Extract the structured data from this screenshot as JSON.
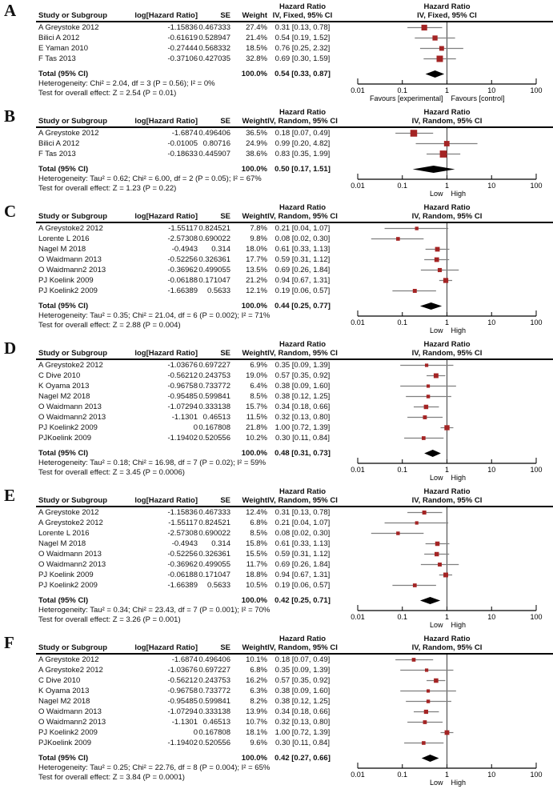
{
  "colors": {
    "marker": "#a42424",
    "ci_line": "#7f7f7f",
    "diamond": "#000000",
    "null_line": "#3f3f3f",
    "axis": "#000000"
  },
  "chart_data": [
    {
      "type": "forest",
      "label": "A",
      "effect_header": "Hazard Ratio",
      "columns": {
        "study": "Study or Subgroup",
        "loghr": "log[Hazard Ratio]",
        "se": "SE",
        "weight": "Weight",
        "ci": "IV, Fixed, 95% CI"
      },
      "x_scale": "log10",
      "x_range": [
        0.01,
        100
      ],
      "axis_values": [
        0.01,
        0.1,
        1,
        10,
        100
      ],
      "axis_ticks": [
        "0.01",
        "0.1",
        "1",
        "10",
        "100"
      ],
      "left_label": "Favours [experimental]",
      "right_label": "Favours [control]",
      "rows": [
        {
          "study": "A Greystoke 2012",
          "loghr": "-1.15836",
          "se": "0.467333",
          "weight": "27.4%",
          "ci": "0.31 [0.13, 0.78]",
          "est": 0.31,
          "lo": 0.13,
          "hi": 0.78,
          "w": 27.4
        },
        {
          "study": "Bilici A 2012",
          "loghr": "-0.61619",
          "se": "0.528947",
          "weight": "21.4%",
          "ci": "0.54 [0.19, 1.52]",
          "est": 0.54,
          "lo": 0.19,
          "hi": 1.52,
          "w": 21.4
        },
        {
          "study": "E Yaman 2010",
          "loghr": "-0.27444",
          "se": "0.568332",
          "weight": "18.5%",
          "ci": "0.76 [0.25, 2.32]",
          "est": 0.76,
          "lo": 0.25,
          "hi": 2.32,
          "w": 18.5
        },
        {
          "study": "F Tas 2013",
          "loghr": "-0.37106",
          "se": "0.427035",
          "weight": "32.8%",
          "ci": "0.69 [0.30, 1.59]",
          "est": 0.69,
          "lo": 0.3,
          "hi": 1.59,
          "w": 32.8
        }
      ],
      "total": {
        "label": "Total (95% CI)",
        "weight": "100.0%",
        "ci": "0.54 [0.33, 0.87]",
        "est": 0.54,
        "lo": 0.33,
        "hi": 0.87
      },
      "heterogeneity": "Heterogeneity: Chi² = 2.04, df = 3 (P = 0.56); I² = 0%",
      "overall_effect": "Test for overall effect: Z = 2.54 (P = 0.01)"
    },
    {
      "type": "forest",
      "label": "B",
      "effect_header": "Hazard Ratio",
      "columns": {
        "study": "Study or Subgroup",
        "loghr": "log[Hazard Ratio]",
        "se": "SE",
        "weight": "Weight",
        "ci": "IV, Random, 95% CI"
      },
      "x_scale": "log10",
      "x_range": [
        0.01,
        100
      ],
      "axis_values": [
        0.01,
        0.1,
        1,
        10,
        100
      ],
      "axis_ticks": [
        "0.01",
        "0.1",
        "1",
        "10",
        "100"
      ],
      "left_label": "Low",
      "right_label": "High",
      "rows": [
        {
          "study": "A Greystoke 2012",
          "loghr": "-1.6874",
          "se": "0.496406",
          "weight": "36.5%",
          "ci": "0.18 [0.07, 0.49]",
          "est": 0.18,
          "lo": 0.07,
          "hi": 0.49,
          "w": 36.5
        },
        {
          "study": "Bilici A 2012",
          "loghr": "-0.01005",
          "se": "0.80716",
          "weight": "24.9%",
          "ci": "0.99 [0.20, 4.82]",
          "est": 0.99,
          "lo": 0.2,
          "hi": 4.82,
          "w": 24.9
        },
        {
          "study": "F Tas 2013",
          "loghr": "-0.18633",
          "se": "0.445907",
          "weight": "38.6%",
          "ci": "0.83 [0.35, 1.99]",
          "est": 0.83,
          "lo": 0.35,
          "hi": 1.99,
          "w": 38.6
        }
      ],
      "total": {
        "label": "Total (95% CI)",
        "weight": "100.0%",
        "ci": "0.50 [0.17, 1.51]",
        "est": 0.5,
        "lo": 0.17,
        "hi": 1.51
      },
      "heterogeneity": "Heterogeneity: Tau² = 0.62; Chi² = 6.00, df = 2 (P = 0.05); I² = 67%",
      "overall_effect": "Test for overall effect: Z = 1.23 (P = 0.22)"
    },
    {
      "type": "forest",
      "label": "C",
      "effect_header": "Hazard Ratio",
      "columns": {
        "study": "Study or Subgroup",
        "loghr": "log[Hazard Ratio]",
        "se": "SE",
        "weight": "Weight",
        "ci": "IV, Random, 95% CI"
      },
      "x_scale": "log10",
      "x_range": [
        0.01,
        100
      ],
      "axis_values": [
        0.01,
        0.1,
        1,
        10,
        100
      ],
      "axis_ticks": [
        "0.01",
        "0.1",
        "1",
        "10",
        "100"
      ],
      "left_label": "Low",
      "right_label": "High",
      "rows": [
        {
          "study": "A Greystoke2 2012",
          "loghr": "-1.55117",
          "se": "0.824521",
          "weight": "7.8%",
          "ci": "0.21 [0.04, 1.07]",
          "est": 0.21,
          "lo": 0.04,
          "hi": 1.07,
          "w": 7.8
        },
        {
          "study": "Lorente L 2016",
          "loghr": "-2.57308",
          "se": "0.690022",
          "weight": "9.8%",
          "ci": "0.08 [0.02, 0.30]",
          "est": 0.08,
          "lo": 0.02,
          "hi": 0.3,
          "w": 9.8
        },
        {
          "study": "Nagel M 2018",
          "loghr": "-0.4943",
          "se": "0.314",
          "weight": "18.0%",
          "ci": "0.61 [0.33, 1.13]",
          "est": 0.61,
          "lo": 0.33,
          "hi": 1.13,
          "w": 18.0
        },
        {
          "study": "O Waidmann 2013",
          "loghr": "-0.52256",
          "se": "0.326361",
          "weight": "17.7%",
          "ci": "0.59 [0.31, 1.12]",
          "est": 0.59,
          "lo": 0.31,
          "hi": 1.12,
          "w": 17.7
        },
        {
          "study": "O Waidmann2 2013",
          "loghr": "-0.36962",
          "se": "0.499055",
          "weight": "13.5%",
          "ci": "0.69 [0.26, 1.84]",
          "est": 0.69,
          "lo": 0.26,
          "hi": 1.84,
          "w": 13.5
        },
        {
          "study": "PJ Koelink 2009",
          "loghr": "-0.06188",
          "se": "0.171047",
          "weight": "21.2%",
          "ci": "0.94 [0.67, 1.31]",
          "est": 0.94,
          "lo": 0.67,
          "hi": 1.31,
          "w": 21.2
        },
        {
          "study": "PJ Koelink2 2009",
          "loghr": "-1.66389",
          "se": "0.5633",
          "weight": "12.1%",
          "ci": "0.19 [0.06, 0.57]",
          "est": 0.19,
          "lo": 0.06,
          "hi": 0.57,
          "w": 12.1
        }
      ],
      "total": {
        "label": "Total (95% CI)",
        "weight": "100.0%",
        "ci": "0.44 [0.25, 0.77]",
        "est": 0.44,
        "lo": 0.25,
        "hi": 0.77
      },
      "heterogeneity": "Heterogeneity: Tau² = 0.35; Chi² = 21.04, df = 6 (P = 0.002); I² = 71%",
      "overall_effect": "Test for overall effect: Z = 2.88 (P = 0.004)"
    },
    {
      "type": "forest",
      "label": "D",
      "effect_header": "Hazard Ratio",
      "columns": {
        "study": "Study or Subgroup",
        "loghr": "log[Hazard Ratio]",
        "se": "SE",
        "weight": "Weight",
        "ci": "IV, Random, 95% CI"
      },
      "x_scale": "log10",
      "x_range": [
        0.01,
        100
      ],
      "axis_values": [
        0.01,
        0.1,
        1,
        10,
        100
      ],
      "axis_ticks": [
        "0.01",
        "0.1",
        "1",
        "10",
        "100"
      ],
      "left_label": "Low",
      "right_label": "High",
      "rows": [
        {
          "study": "A Greystoke2 2012",
          "loghr": "-1.03676",
          "se": "0.697227",
          "weight": "6.9%",
          "ci": "0.35 [0.09, 1.39]",
          "est": 0.35,
          "lo": 0.09,
          "hi": 1.39,
          "w": 6.9
        },
        {
          "study": "C Dive 2010",
          "loghr": "-0.56212",
          "se": "0.243753",
          "weight": "19.0%",
          "ci": "0.57 [0.35, 0.92]",
          "est": 0.57,
          "lo": 0.35,
          "hi": 0.92,
          "w": 19.0
        },
        {
          "study": "K Oyama 2013",
          "loghr": "-0.96758",
          "se": "0.733772",
          "weight": "6.4%",
          "ci": "0.38 [0.09, 1.60]",
          "est": 0.38,
          "lo": 0.09,
          "hi": 1.6,
          "w": 6.4
        },
        {
          "study": "Nagel M2 2018",
          "loghr": "-0.95485",
          "se": "0.599841",
          "weight": "8.5%",
          "ci": "0.38 [0.12, 1.25]",
          "est": 0.38,
          "lo": 0.12,
          "hi": 1.25,
          "w": 8.5
        },
        {
          "study": "O Waidmann 2013",
          "loghr": "-1.07294",
          "se": "0.333138",
          "weight": "15.7%",
          "ci": "0.34 [0.18, 0.66]",
          "est": 0.34,
          "lo": 0.18,
          "hi": 0.66,
          "w": 15.7
        },
        {
          "study": "O Waidmann2 2013",
          "loghr": "-1.1301",
          "se": "0.46513",
          "weight": "11.5%",
          "ci": "0.32 [0.13, 0.80]",
          "est": 0.32,
          "lo": 0.13,
          "hi": 0.8,
          "w": 11.5
        },
        {
          "study": "PJ Koelink2 2009",
          "loghr": "0",
          "se": "0.167808",
          "weight": "21.8%",
          "ci": "1.00 [0.72, 1.39]",
          "est": 1.0,
          "lo": 0.72,
          "hi": 1.39,
          "w": 21.8
        },
        {
          "study": "PJKoelink 2009",
          "loghr": "-1.19402",
          "se": "0.520556",
          "weight": "10.2%",
          "ci": "0.30 [0.11, 0.84]",
          "est": 0.3,
          "lo": 0.11,
          "hi": 0.84,
          "w": 10.2
        }
      ],
      "total": {
        "label": "Total (95% CI)",
        "weight": "100.0%",
        "ci": "0.48 [0.31, 0.73]",
        "est": 0.48,
        "lo": 0.31,
        "hi": 0.73
      },
      "heterogeneity": "Heterogeneity: Tau² = 0.18; Chi² = 16.98, df = 7 (P = 0.02); I² = 59%",
      "overall_effect": "Test for overall effect: Z = 3.45 (P = 0.0006)"
    },
    {
      "type": "forest",
      "label": "E",
      "effect_header": "Hazard Ratio",
      "columns": {
        "study": "Study or Subgroup",
        "loghr": "log[Hazard Ratio]",
        "se": "SE",
        "weight": "Weight",
        "ci": "IV, Random, 95% CI"
      },
      "x_scale": "log10",
      "x_range": [
        0.01,
        100
      ],
      "axis_values": [
        0.01,
        0.1,
        1,
        10,
        100
      ],
      "axis_ticks": [
        "0.01",
        "0.1",
        "1",
        "10",
        "100"
      ],
      "left_label": "Low",
      "right_label": "High",
      "rows": [
        {
          "study": "A Greystoke 2012",
          "loghr": "-1.15836",
          "se": "0.467333",
          "weight": "12.4%",
          "ci": "0.31 [0.13, 0.78]",
          "est": 0.31,
          "lo": 0.13,
          "hi": 0.78,
          "w": 12.4
        },
        {
          "study": "A Greystoke2 2012",
          "loghr": "-1.55117",
          "se": "0.824521",
          "weight": "6.8%",
          "ci": "0.21 [0.04, 1.07]",
          "est": 0.21,
          "lo": 0.04,
          "hi": 1.07,
          "w": 6.8
        },
        {
          "study": "Lorente L 2016",
          "loghr": "-2.57308",
          "se": "0.690022",
          "weight": "8.5%",
          "ci": "0.08 [0.02, 0.30]",
          "est": 0.08,
          "lo": 0.02,
          "hi": 0.3,
          "w": 8.5
        },
        {
          "study": "Nagel M 2018",
          "loghr": "-0.4943",
          "se": "0.314",
          "weight": "15.8%",
          "ci": "0.61 [0.33, 1.13]",
          "est": 0.61,
          "lo": 0.33,
          "hi": 1.13,
          "w": 15.8
        },
        {
          "study": "O Waidmann 2013",
          "loghr": "-0.52256",
          "se": "0.326361",
          "weight": "15.5%",
          "ci": "0.59 [0.31, 1.12]",
          "est": 0.59,
          "lo": 0.31,
          "hi": 1.12,
          "w": 15.5
        },
        {
          "study": "O Waidmann2 2013",
          "loghr": "-0.36962",
          "se": "0.499055",
          "weight": "11.7%",
          "ci": "0.69 [0.26, 1.84]",
          "est": 0.69,
          "lo": 0.26,
          "hi": 1.84,
          "w": 11.7
        },
        {
          "study": "PJ Koelink 2009",
          "loghr": "-0.06188",
          "se": "0.171047",
          "weight": "18.8%",
          "ci": "0.94 [0.67, 1.31]",
          "est": 0.94,
          "lo": 0.67,
          "hi": 1.31,
          "w": 18.8
        },
        {
          "study": "PJ Koelink2 2009",
          "loghr": "-1.66389",
          "se": "0.5633",
          "weight": "10.5%",
          "ci": "0.19 [0.06, 0.57]",
          "est": 0.19,
          "lo": 0.06,
          "hi": 0.57,
          "w": 10.5
        }
      ],
      "total": {
        "label": "Total (95% CI)",
        "weight": "100.0%",
        "ci": "0.42 [0.25, 0.71]",
        "est": 0.42,
        "lo": 0.25,
        "hi": 0.71
      },
      "heterogeneity": "Heterogeneity: Tau² = 0.34; Chi² = 23.43, df = 7 (P = 0.001); I² = 70%",
      "overall_effect": "Test for overall effect: Z = 3.26 (P = 0.001)"
    },
    {
      "type": "forest",
      "label": "F",
      "effect_header": "Hazard Ratio",
      "columns": {
        "study": "Study or Subgroup",
        "loghr": "log[Hazard Ratio]",
        "se": "SE",
        "weight": "Weight",
        "ci": "IV, Random, 95% CI"
      },
      "x_scale": "log10",
      "x_range": [
        0.01,
        100
      ],
      "axis_values": [
        0.01,
        0.1,
        1,
        10,
        100
      ],
      "axis_ticks": [
        "0.01",
        "0.1",
        "1",
        "10",
        "100"
      ],
      "left_label": "Low",
      "right_label": "High",
      "rows": [
        {
          "study": "A Greystoke 2012",
          "loghr": "-1.6874",
          "se": "0.496406",
          "weight": "10.1%",
          "ci": "0.18 [0.07, 0.49]",
          "est": 0.18,
          "lo": 0.07,
          "hi": 0.49,
          "w": 10.1
        },
        {
          "study": "A Greystoke2 2012",
          "loghr": "-1.03676",
          "se": "0.697227",
          "weight": "6.8%",
          "ci": "0.35 [0.09, 1.39]",
          "est": 0.35,
          "lo": 0.09,
          "hi": 1.39,
          "w": 6.8
        },
        {
          "study": "C Dive 2010",
          "loghr": "-0.56212",
          "se": "0.243753",
          "weight": "16.2%",
          "ci": "0.57 [0.35, 0.92]",
          "est": 0.57,
          "lo": 0.35,
          "hi": 0.92,
          "w": 16.2
        },
        {
          "study": "K Oyama 2013",
          "loghr": "-0.96758",
          "se": "0.733772",
          "weight": "6.3%",
          "ci": "0.38 [0.09, 1.60]",
          "est": 0.38,
          "lo": 0.09,
          "hi": 1.6,
          "w": 6.3
        },
        {
          "study": "Nagel M2 2018",
          "loghr": "-0.95485",
          "se": "0.599841",
          "weight": "8.2%",
          "ci": "0.38 [0.12, 1.25]",
          "est": 0.38,
          "lo": 0.12,
          "hi": 1.25,
          "w": 8.2
        },
        {
          "study": "O Waidmann 2013",
          "loghr": "-1.07294",
          "se": "0.333138",
          "weight": "13.9%",
          "ci": "0.34 [0.18, 0.66]",
          "est": 0.34,
          "lo": 0.18,
          "hi": 0.66,
          "w": 13.9
        },
        {
          "study": "O Waidmann2 2013",
          "loghr": "-1.1301",
          "se": "0.46513",
          "weight": "10.7%",
          "ci": "0.32 [0.13, 0.80]",
          "est": 0.32,
          "lo": 0.13,
          "hi": 0.8,
          "w": 10.7
        },
        {
          "study": "PJ Koelink2 2009",
          "loghr": "0",
          "se": "0.167808",
          "weight": "18.1%",
          "ci": "1.00 [0.72, 1.39]",
          "est": 1.0,
          "lo": 0.72,
          "hi": 1.39,
          "w": 18.1
        },
        {
          "study": "PJKoelink 2009",
          "loghr": "-1.19402",
          "se": "0.520556",
          "weight": "9.6%",
          "ci": "0.30 [0.11, 0.84]",
          "est": 0.3,
          "lo": 0.11,
          "hi": 0.84,
          "w": 9.6
        }
      ],
      "total": {
        "label": "Total (95% CI)",
        "weight": "100.0%",
        "ci": "0.42 [0.27, 0.66]",
        "est": 0.42,
        "lo": 0.27,
        "hi": 0.66
      },
      "heterogeneity": "Heterogeneity: Tau² = 0.25; Chi² = 22.76, df = 8 (P = 0.004); I² = 65%",
      "overall_effect": "Test for overall effect: Z = 3.84 (P = 0.0001)"
    }
  ]
}
